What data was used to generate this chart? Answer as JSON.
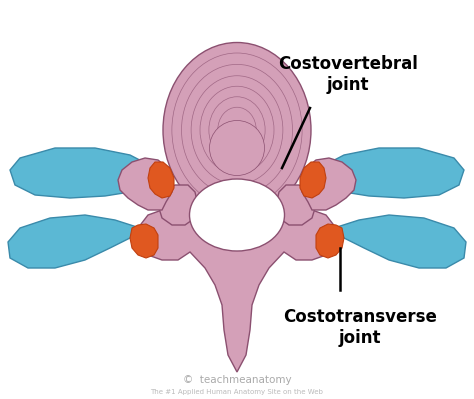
{
  "bg_color": "#ffffff",
  "vertebra_color": "#d4a0b8",
  "vertebra_edge": "#8b5070",
  "rib_color": "#5bb8d4",
  "rib_edge": "#3a8aaa",
  "joint_color": "#e05820",
  "joint_edge": "#c04010",
  "label1_text": "Costovertebral\njoint",
  "label2_text": "Costotransverse\njoint",
  "watermark": "teachmeanatomy",
  "copyright": "©"
}
